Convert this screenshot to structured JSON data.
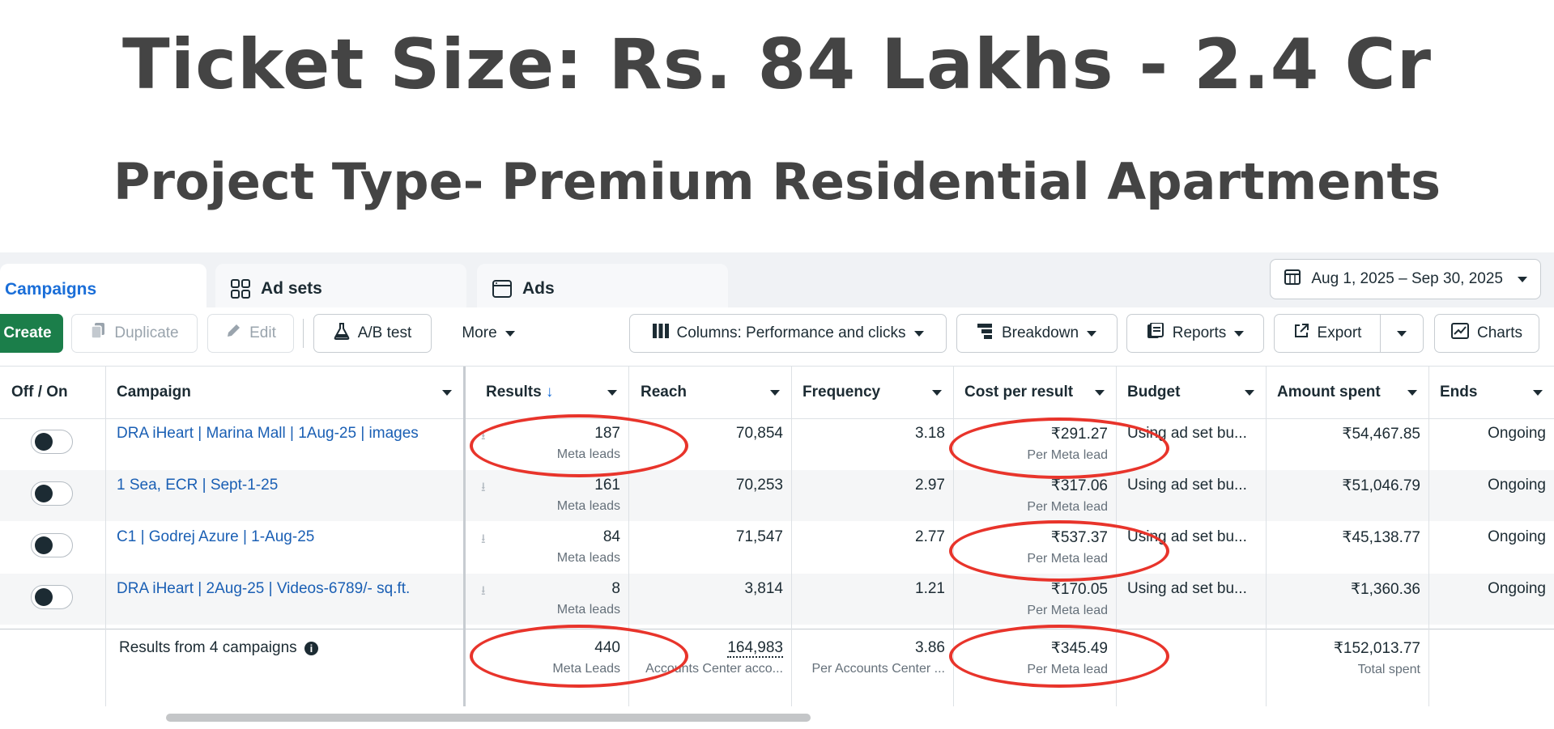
{
  "headline": "Ticket Size: Rs. 84 Lakhs - 2.4 Cr",
  "subheadline": "Project Type- Premium Residential Apartments",
  "tabs": [
    {
      "label": "Campaigns",
      "icon": "campaigns-icon",
      "active": true
    },
    {
      "label": "Ad sets",
      "icon": "grid-icon",
      "active": false
    },
    {
      "label": "Ads",
      "icon": "ad-window-icon",
      "active": false
    }
  ],
  "date_range": "Aug 1, 2025 – Sep 30, 2025",
  "toolbar": {
    "create": "Create",
    "duplicate": "Duplicate",
    "edit": "Edit",
    "ab_test": "A/B test",
    "more": "More",
    "columns": "Columns: Performance and clicks",
    "breakdown": "Breakdown",
    "reports": "Reports",
    "export": "Export",
    "charts": "Charts"
  },
  "columns": [
    "Off / On",
    "Campaign",
    "Results",
    "Reach",
    "Frequency",
    "Cost per result",
    "Budget",
    "Amount spent",
    "Ends"
  ],
  "rows": [
    {
      "campaign": "DRA iHeart | Marina Mall | 1Aug-25 | images",
      "results": "187",
      "results_sub": "Meta leads",
      "reach": "70,854",
      "frequency": "3.18",
      "cpr": "₹291.27",
      "cpr_sub": "Per Meta lead",
      "budget": "Using ad set bu...",
      "spent": "₹54,467.85",
      "ends": "Ongoing"
    },
    {
      "campaign": "1 Sea, ECR | Sept-1-25",
      "results": "161",
      "results_sub": "Meta leads",
      "reach": "70,253",
      "frequency": "2.97",
      "cpr": "₹317.06",
      "cpr_sub": "Per Meta lead",
      "budget": "Using ad set bu...",
      "spent": "₹51,046.79",
      "ends": "Ongoing"
    },
    {
      "campaign": "C1 | Godrej Azure | 1-Aug-25",
      "results": "84",
      "results_sub": "Meta leads",
      "reach": "71,547",
      "frequency": "2.77",
      "cpr": "₹537.37",
      "cpr_sub": "Per Meta lead",
      "budget": "Using ad set bu...",
      "spent": "₹45,138.77",
      "ends": "Ongoing"
    },
    {
      "campaign": "DRA iHeart | 2Aug-25 | Videos-6789/- sq.ft.",
      "results": "8",
      "results_sub": "Meta leads",
      "reach": "3,814",
      "frequency": "1.21",
      "cpr": "₹170.05",
      "cpr_sub": "Per Meta lead",
      "budget": "Using ad set bu...",
      "spent": "₹1,360.36",
      "ends": "Ongoing"
    }
  ],
  "totals": {
    "label": "Results from 4 campaigns",
    "results": "440",
    "results_sub": "Meta Leads",
    "reach": "164,983",
    "reach_sub": "Accounts Center acco...",
    "frequency": "3.86",
    "frequency_sub": "Per Accounts Center ...",
    "cpr": "₹345.49",
    "cpr_sub": "Per Meta lead",
    "spent": "₹152,013.77",
    "spent_sub": "Total spent"
  },
  "colors": {
    "annotation": "#e8342b",
    "link": "#1a5fb4",
    "create": "#1b7e4a",
    "active_tab": "#1a6ed8"
  }
}
